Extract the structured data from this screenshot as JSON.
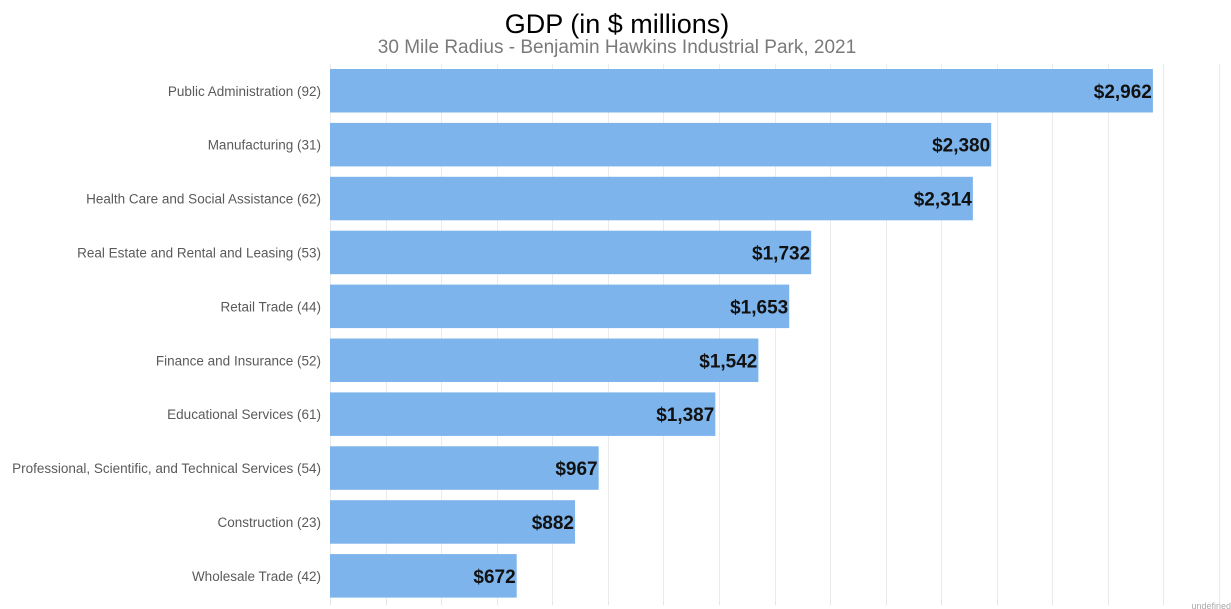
{
  "chart_data": {
    "type": "bar",
    "orientation": "horizontal",
    "title": "GDP (in $ millions)",
    "subtitle": "30 Mile Radius - Benjamin Hawkins Industrial Park, 2021",
    "categories": [
      "Public Administration (92)",
      "Manufacturing (31)",
      "Health Care and Social Assistance (62)",
      "Real Estate and Rental and Leasing (53)",
      "Retail Trade (44)",
      "Finance and Insurance (52)",
      "Educational Services (61)",
      "Professional, Scientific, and Technical Services (54)",
      "Construction (23)",
      "Wholesale Trade (42)"
    ],
    "values": [
      2962,
      2380,
      2314,
      1732,
      1653,
      1542,
      1387,
      967,
      882,
      672
    ],
    "value_labels": [
      "$2,962",
      "$2,380",
      "$2,314",
      "$1,732",
      "$1,653",
      "$1,542",
      "$1,387",
      "$967",
      "$882",
      "$672"
    ],
    "xlim": [
      0,
      3200
    ],
    "x_grid_step": 200,
    "grid": true,
    "legend": "none",
    "xlabel": "",
    "ylabel": ""
  },
  "colors": {
    "bar": "#7cb4eb",
    "value_label": "#111111",
    "category_label": "#5a5a5a",
    "gridline": "#ebebeb"
  },
  "footer": {
    "note": "undefined"
  }
}
